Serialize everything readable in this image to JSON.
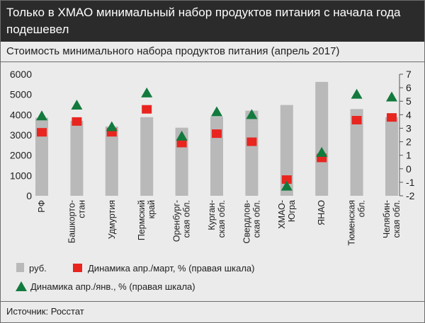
{
  "header": {
    "title": "Только в ХМАО минимальный набор продуктов питания с начала года подешевел"
  },
  "subtitle": "Стоимость минимального набора продуктов питания (апрель 2017)",
  "source": "Источник: Росстат",
  "colors": {
    "bar": "#b9b9b9",
    "square": "#e8251f",
    "triangle": "#127a3d",
    "background": "#ebebeb",
    "header_bg": "#2b2b2b"
  },
  "chart_data": {
    "type": "bar",
    "categories": [
      [
        "РФ"
      ],
      [
        "Башкорто-",
        "стан"
      ],
      [
        "Удмуртия"
      ],
      [
        "Пермский",
        "край"
      ],
      [
        "Оренбург-",
        "ская обл."
      ],
      [
        "Курган-",
        "ская обл."
      ],
      [
        "Свердлов-",
        "ская обл."
      ],
      [
        "ХМАО-",
        "Югра"
      ],
      [
        "ЯНАО"
      ],
      [
        "Тюменская",
        "обл."
      ],
      [
        "Челябин-",
        "ская обл."
      ]
    ],
    "series": [
      {
        "name": "руб.",
        "axis": "left",
        "marker": "bar",
        "values": [
          3850,
          3700,
          3420,
          3880,
          3360,
          3900,
          4200,
          4480,
          5620,
          4280,
          3880
        ]
      },
      {
        "name": "Динамика апр./март, % (правая шкала)",
        "axis": "right",
        "marker": "square",
        "values": [
          2.7,
          3.5,
          2.7,
          4.4,
          1.9,
          2.6,
          2.0,
          -0.8,
          0.8,
          3.6,
          3.8
        ]
      },
      {
        "name": "Динамика апр./янв., % (правая шкала)",
        "axis": "right",
        "marker": "triangle",
        "values": [
          3.9,
          4.7,
          3.1,
          5.6,
          2.4,
          4.2,
          4.0,
          -1.3,
          1.2,
          5.5,
          5.3
        ]
      }
    ],
    "ylim_left": [
      0,
      6000
    ],
    "yticks_left": [
      0,
      1000,
      2000,
      3000,
      4000,
      5000,
      6000
    ],
    "ylim_right": [
      -2,
      7
    ],
    "yticks_right": [
      -2,
      -1,
      0,
      1,
      2,
      3,
      4,
      5,
      6,
      7
    ],
    "grid": false,
    "legend_position": "bottom-left"
  }
}
